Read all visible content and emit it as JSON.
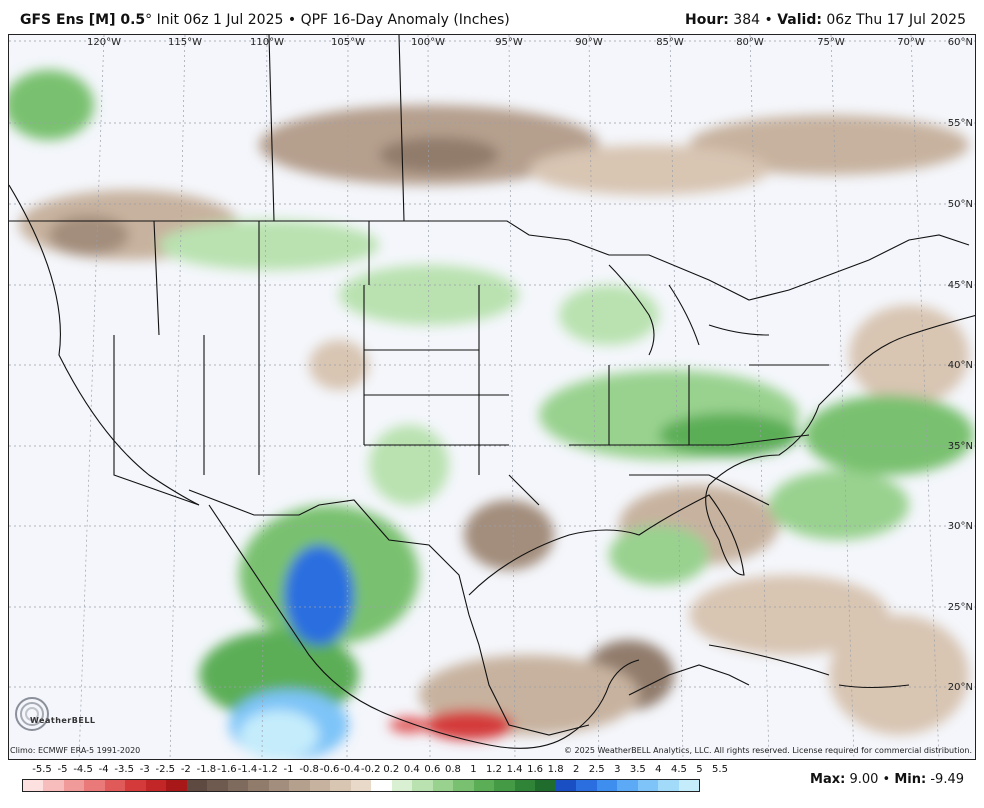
{
  "header": {
    "model": "GFS Ens [M] 0.5",
    "degree": "°",
    "init": "Init 06z 1 Jul 2025",
    "bullet": "•",
    "product": "QPF 16-Day Anomaly (Inches)",
    "hour_label": "Hour:",
    "hour_value": "384",
    "valid_label": "Valid:",
    "valid_value": "06z Thu 17 Jul 2025"
  },
  "map": {
    "longitude_labels": [
      "120°W",
      "115°W",
      "110°W",
      "105°W",
      "100°W",
      "95°W",
      "90°W",
      "85°W",
      "80°W",
      "75°W",
      "70°W"
    ],
    "latitude_labels": [
      "60°N",
      "55°N",
      "50°N",
      "45°N",
      "40°N",
      "35°N",
      "30°N",
      "25°N",
      "20°N"
    ]
  },
  "footer": {
    "climo": "Climo: ECMWF ERA-5 1991-2020",
    "copyright": "© 2025 WeatherBELL Analytics, LLC. All rights reserved. License required for commercial distribution.",
    "logo_text": "WeatherBELL",
    "max_label": "Max:",
    "max_value": "9.00",
    "min_label": "Min:",
    "min_value": "-9.49",
    "bullet": "•"
  },
  "colorbar": {
    "labels": [
      "-5.5",
      "-5",
      "-4.5",
      "-4",
      "-3.5",
      "-3",
      "-2.5",
      "-2",
      "-1.8",
      "-1.6",
      "-1.4",
      "-1.2",
      "-1",
      "-0.8",
      "-0.6",
      "-0.4",
      "-0.2",
      "0.2",
      "0.4",
      "0.6",
      "0.8",
      "1",
      "1.2",
      "1.4",
      "1.6",
      "1.8",
      "2",
      "2.5",
      "3",
      "3.5",
      "4",
      "4.5",
      "5",
      "5.5"
    ],
    "colors": [
      "#fde0e0",
      "#f7bcbc",
      "#f19a9a",
      "#ea7a7a",
      "#e15a5a",
      "#d43a3a",
      "#c22626",
      "#a81818",
      "#5e4a40",
      "#6e5a4e",
      "#7f6b5d",
      "#917c6c",
      "#a38d7c",
      "#b59f8d",
      "#c7b29f",
      "#d8c5b2",
      "#e8d9c8",
      "#ffffff",
      "#d9f0d3",
      "#b9e2b0",
      "#99d28f",
      "#79c170",
      "#5cae56",
      "#449a45",
      "#2f8438",
      "#1f6c2c",
      "#1a4fc4",
      "#2a6ee0",
      "#3e8ef0",
      "#5caaf5",
      "#7ec4f8",
      "#a2daf9",
      "#c4ecfb"
    ]
  }
}
